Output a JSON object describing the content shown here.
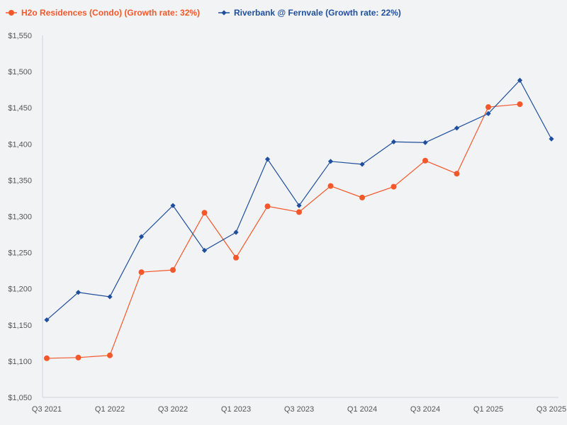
{
  "chart_data": {
    "type": "line",
    "title": "",
    "xlabel": "",
    "ylabel": "",
    "ylim": [
      1050,
      1550
    ],
    "yticks": [
      1050,
      1100,
      1150,
      1200,
      1250,
      1300,
      1350,
      1400,
      1450,
      1500,
      1550
    ],
    "ytick_labels": [
      "$1,050",
      "$1,100",
      "$1,150",
      "$1,200",
      "$1,250",
      "$1,300",
      "$1,350",
      "$1,400",
      "$1,450",
      "$1,500",
      "$1,550"
    ],
    "categories": [
      "Q3 2021",
      "Q4 2021",
      "Q1 2022",
      "Q2 2022",
      "Q3 2022",
      "Q4 2022",
      "Q1 2023",
      "Q2 2023",
      "Q3 2023",
      "Q4 2023",
      "Q1 2024",
      "Q2 2024",
      "Q3 2024",
      "Q4 2024",
      "Q1 2025",
      "Q2 2025",
      "Q3 2025"
    ],
    "xtick_labels": [
      "Q3 2021",
      "Q1 2022",
      "Q3 2022",
      "Q1 2023",
      "Q3 2023",
      "Q1 2024",
      "Q3 2024",
      "Q1 2025",
      "Q3 2025"
    ],
    "legend_position": "top-left",
    "grid": false,
    "series": [
      {
        "name": "H2o Residences (Condo) (Growth rate: 32%)",
        "color": "#f4572a",
        "marker": "circle",
        "values": [
          1104,
          1105,
          1108,
          1223,
          1226,
          1305,
          1243,
          1314,
          1306,
          1342,
          1326,
          1341,
          1377,
          1359,
          1451,
          1455,
          null
        ]
      },
      {
        "name": "Riverbank @ Fernvale (Growth rate: 22%)",
        "color": "#1f4e9c",
        "marker": "diamond",
        "values": [
          1157,
          1195,
          1189,
          1272,
          1315,
          1253,
          1278,
          1379,
          1315,
          1376,
          1372,
          1403,
          1402,
          1422,
          1442,
          1488,
          1407
        ]
      }
    ]
  }
}
